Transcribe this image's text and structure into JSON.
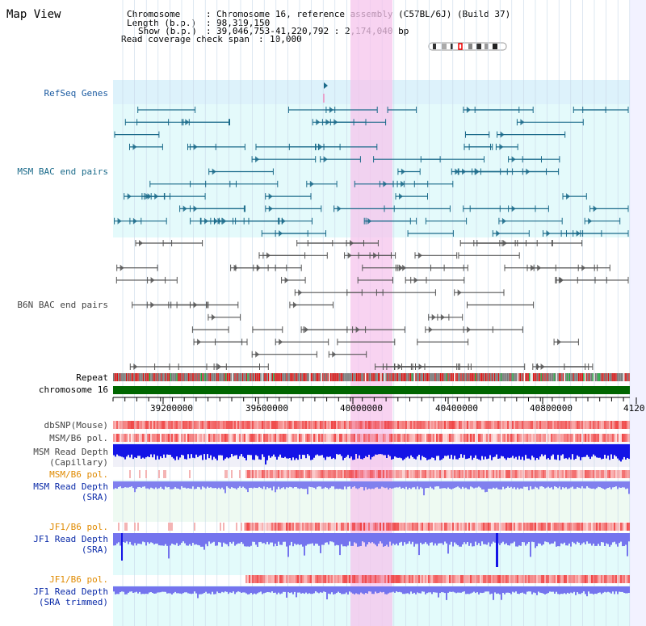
{
  "title": "Map View",
  "header": {
    "chromosome_label": "Chromosome",
    "chromosome_value": "Chromosome 16, reference assembly (C57BL/6J) (Build 37)",
    "length_label": "Length (b.p.)",
    "length_value": "98,319,150",
    "show_label": "Show (b.p.)",
    "show_value": "39,046,753-41,220,792 : 2,174,040 bp",
    "coverage_label": "Read coverage check span",
    "coverage_value": "10,000"
  },
  "tracks": {
    "refseq": "RefSeq Genes",
    "msm_bac": "MSM BAC end pairs",
    "b6n_bac": "B6N BAC end pairs",
    "repeat": "Repeat",
    "chromosome": "chromosome 16",
    "dbsnp": "dbSNP(Mouse)",
    "msm_b6_pol_1": "MSM/B6 pol.",
    "msm_depth_cap_1": "MSM Read Depth",
    "msm_depth_cap_2": "(Capillary)",
    "msm_b6_pol_2": "MSM/B6 pol.",
    "msm_depth_sra_1": "MSM Read Depth",
    "msm_depth_sra_2": "(SRA)",
    "jf1_b6_pol_1": "JF1/B6 pol.",
    "jf1_depth_sra_1": "JF1 Read Depth",
    "jf1_depth_sra_2": "(SRA)",
    "jf1_b6_pol_2": "JF1/B6 pol.",
    "jf1_depth_trim_1": "JF1 Read Depth",
    "jf1_depth_trim_2": "(SRA trimmed)"
  },
  "axis": {
    "ticks": [
      "39200000",
      "39600000",
      "40000000",
      "40400000",
      "40800000",
      "4120"
    ]
  },
  "colors": {
    "refseq_color": "#1a6a8a",
    "msm_label": "#1a5aa0",
    "orange_label": "#e08a00",
    "blue_label": "#0a2aa8",
    "gray_label": "#444444",
    "highlight": "#f6c4ec",
    "chromosome_bar": "#006600",
    "depth_dark": "#1010e0",
    "depth_light": "#8888ee"
  }
}
